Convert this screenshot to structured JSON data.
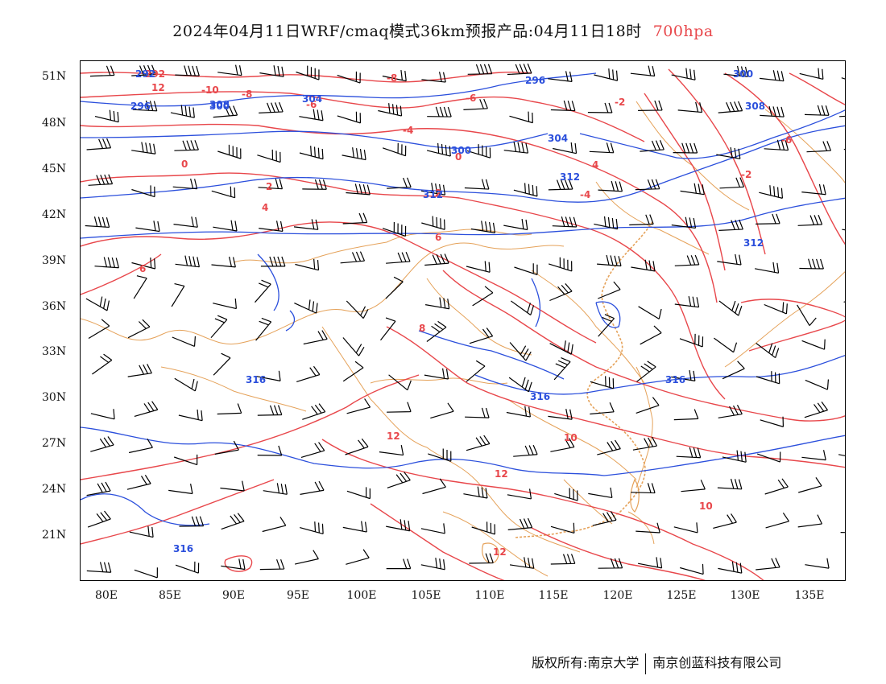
{
  "title": {
    "main": "2024年04月11日WRF/cmaq模式36km预报产品:04月11日18时",
    "level": "700hpa",
    "level_color": "#e8474b"
  },
  "map": {
    "projection": "lat-lon",
    "lon_range": [
      78,
      138
    ],
    "lat_range": [
      17.5,
      52
    ],
    "lat_labels": [
      "51N",
      "48N",
      "45N",
      "42N",
      "39N",
      "36N",
      "33N",
      "30N",
      "27N",
      "24N",
      "21N"
    ],
    "lon_labels": [
      "80E",
      "85E",
      "90E",
      "95E",
      "100E",
      "105E",
      "110E",
      "115E",
      "120E",
      "125E",
      "130E",
      "135E"
    ],
    "colors": {
      "temperature": "#e8474b",
      "theta": "#2b4fdc",
      "boundary": "#e5a25a",
      "barb": "#000000"
    },
    "temperature_labels": [
      "292",
      "12",
      "-10",
      "-8",
      "-8",
      "-6",
      "-6",
      "-4",
      "-4",
      "-2",
      "-2",
      "0",
      "0",
      "2",
      "2",
      "4",
      "4",
      "6",
      "6",
      "8",
      "10",
      "10",
      "12",
      "12",
      "12",
      "-6"
    ],
    "theta_labels": [
      "292",
      "296",
      "296",
      "300",
      "300",
      "300",
      "304",
      "304",
      "308",
      "308",
      "312",
      "312",
      "312",
      "316",
      "316",
      "316",
      "316"
    ]
  },
  "footer": {
    "left": "版权所有:南京大学",
    "right": "南京创蓝科技有限公司"
  }
}
